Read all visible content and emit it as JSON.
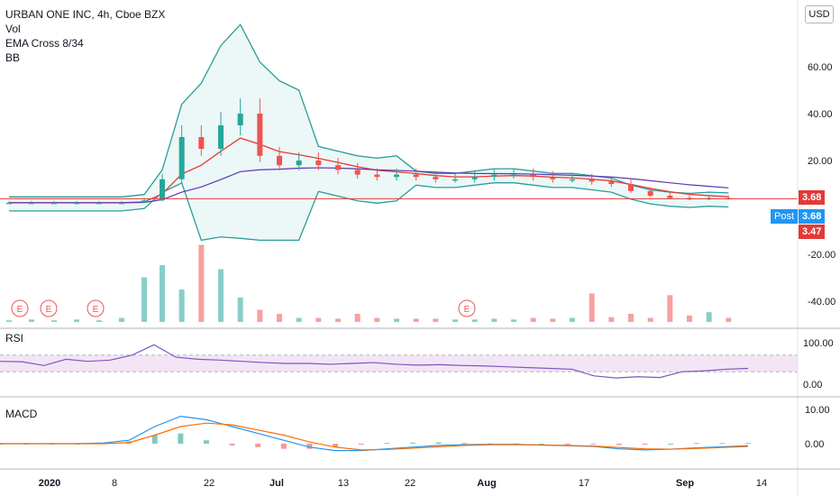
{
  "header": {
    "title": "URBAN ONE INC, 4h, Cboe BZX",
    "studies": [
      "Vol",
      "EMA Cross 8/34",
      "BB"
    ],
    "currency": "USD"
  },
  "panes": {
    "rsi_label": "RSI",
    "macd_label": "MACD"
  },
  "price_tags": {
    "last": "3.68",
    "post_label": "Post",
    "post": "3.68",
    "low": "3.47"
  },
  "colors": {
    "up": "#26a69a",
    "down": "#ef5350",
    "bb": "#2a9d9a",
    "bb_fill": "#e0f2f1",
    "ema_fast": "#e53935",
    "ema_slow": "#5e35b1",
    "rsi": "#7e57c2",
    "macd": "#2196f3",
    "signal": "#ff6d00",
    "price_line": "#e53935"
  },
  "chart_data": [
    {
      "type": "candlestick",
      "title": "URBAN ONE INC, 4h, Cboe BZX",
      "y_ticks": [
        "60.00",
        "40.00",
        "20.00",
        "-20.00",
        "-40.00"
      ],
      "x_ticks": [
        "2020",
        "8",
        "22",
        "Jul",
        "13",
        "22",
        "Aug",
        "17",
        "Sep",
        "14"
      ],
      "x_tick_bold": [
        "2020",
        "Jul",
        "Aug",
        "Sep"
      ],
      "earnings_markers": [
        "E",
        "E",
        "E",
        "E"
      ],
      "last_price": 3.68,
      "approx_close": [
        2,
        2,
        2,
        2,
        2,
        2,
        3,
        12,
        30,
        25,
        35,
        40,
        22,
        18,
        20,
        18,
        16,
        14,
        13,
        14,
        13,
        12,
        12,
        13,
        14,
        14,
        13,
        12,
        12,
        11,
        10,
        7,
        5,
        4,
        3.5,
        4,
        3.7
      ],
      "series": [
        {
          "name": "EMA 8"
        },
        {
          "name": "EMA 34"
        },
        {
          "name": "BB"
        }
      ]
    },
    {
      "type": "bar",
      "title": "Vol",
      "approx_relative_volume": [
        0.02,
        0.03,
        0.02,
        0.03,
        0.02,
        0.05,
        0.55,
        0.7,
        0.4,
        0.95,
        0.65,
        0.3,
        0.15,
        0.1,
        0.05,
        0.05,
        0.04,
        0.1,
        0.05,
        0.04,
        0.04,
        0.04,
        0.03,
        0.03,
        0.04,
        0.03,
        0.05,
        0.04,
        0.05,
        0.35,
        0.06,
        0.1,
        0.05,
        0.33,
        0.08,
        0.12,
        0.05
      ]
    },
    {
      "type": "line",
      "title": "RSI",
      "y_ticks": [
        "100.00",
        "0.00"
      ],
      "band": [
        30,
        70
      ],
      "approx_values": [
        55,
        54,
        45,
        60,
        55,
        58,
        70,
        95,
        65,
        60,
        58,
        55,
        52,
        50,
        50,
        48,
        50,
        52,
        48,
        46,
        47,
        45,
        44,
        42,
        40,
        38,
        36,
        20,
        15,
        18,
        16,
        30,
        32,
        36,
        38
      ]
    },
    {
      "type": "line",
      "title": "MACD",
      "y_ticks": [
        "10.00",
        "0.00"
      ],
      "approx_macd": [
        0,
        0,
        0,
        0,
        0.2,
        1,
        5,
        8,
        7,
        5,
        3,
        1,
        -1,
        -2,
        -2,
        -1.5,
        -1,
        -0.5,
        -0.3,
        -0.2,
        -0.2,
        -0.4,
        -0.6,
        -0.8,
        -1.5,
        -1.8,
        -1.6,
        -1.2,
        -0.9,
        -0.6
      ],
      "approx_signal": [
        0,
        0,
        0,
        0,
        0,
        0.3,
        2.5,
        5,
        6,
        5.5,
        4,
        2.5,
        0.5,
        -1,
        -1.8,
        -1.7,
        -1.3,
        -0.9,
        -0.5,
        -0.3,
        -0.3,
        -0.4,
        -0.5,
        -0.7,
        -1.1,
        -1.5,
        -1.6,
        -1.4,
        -1.1,
        -0.8
      ]
    }
  ]
}
